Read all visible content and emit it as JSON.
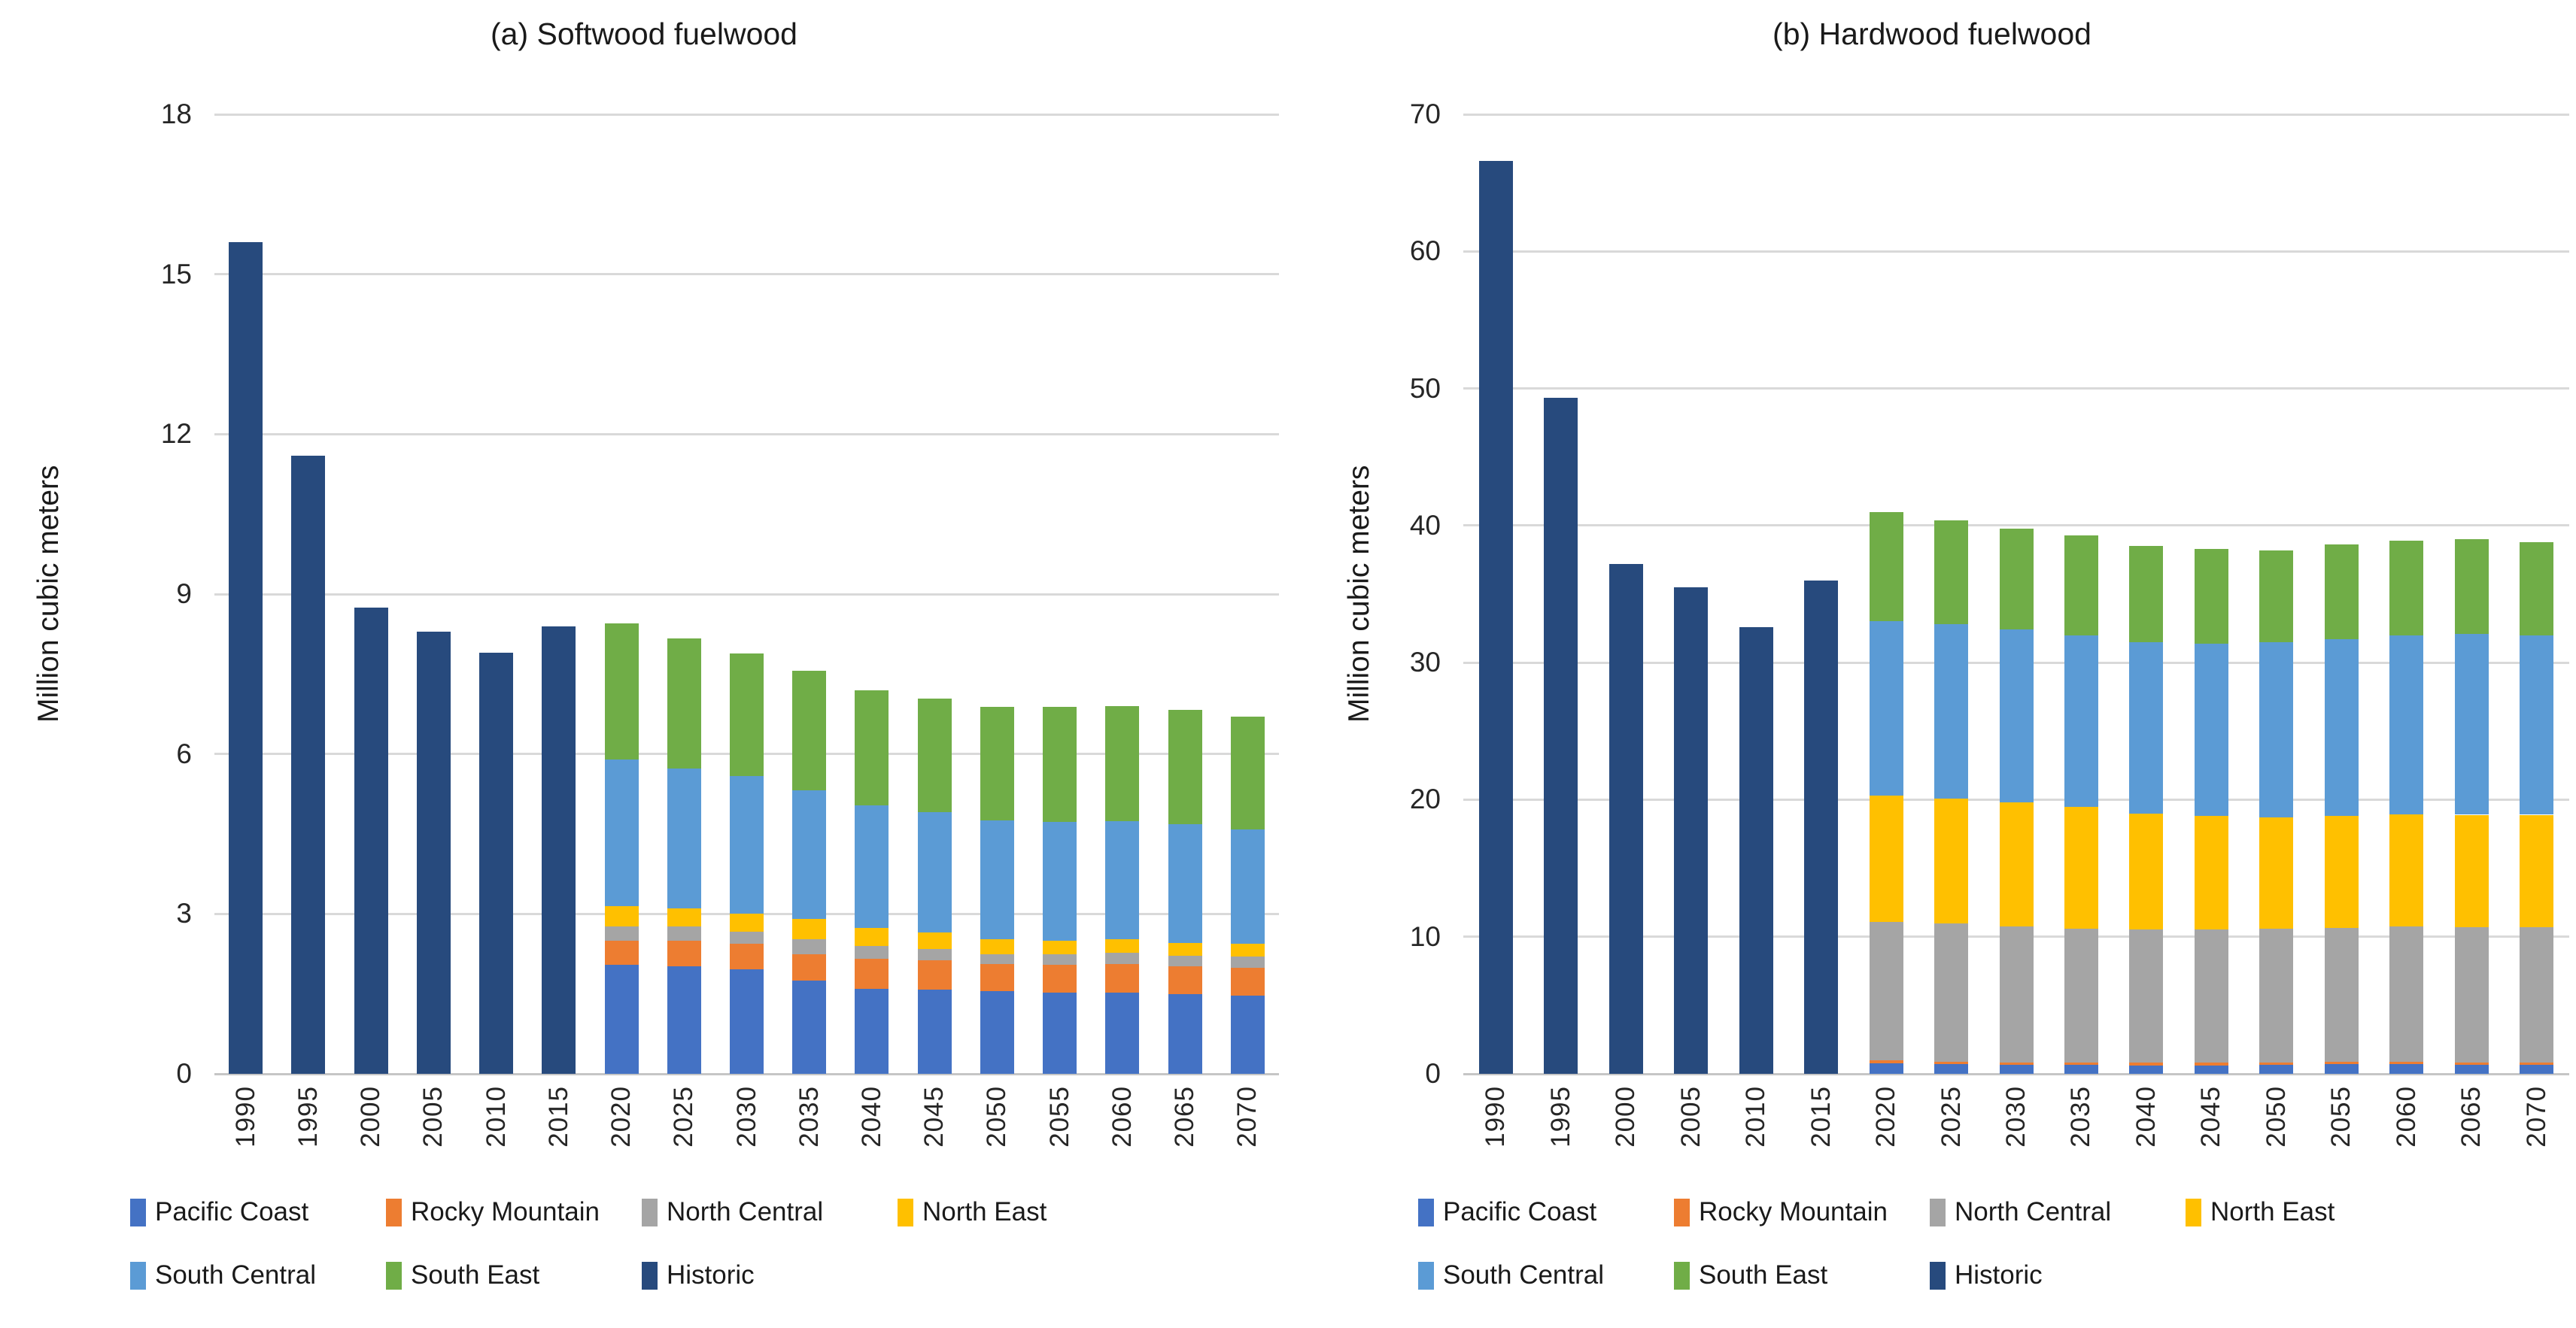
{
  "colors": {
    "Pacific Coast": "#4472C4",
    "Rocky Mountain": "#ED7D31",
    "North Central": "#A5A5A5",
    "North East": "#FFC000",
    "South Central": "#5B9BD5",
    "South East": "#70AD47",
    "Historic": "#274A7D",
    "gridline": "#D9D9D9",
    "axis_line": "#C6C6C6",
    "text": "#1A1A1A"
  },
  "chart_data": [
    {
      "type": "bar",
      "stacked": true,
      "title": "(a) Softwood fuelwood",
      "ylabel": "Million cubic meters",
      "xlabel": "",
      "ylim": [
        0,
        18
      ],
      "yticks": [
        0,
        3,
        6,
        9,
        12,
        15,
        18
      ],
      "grid": true,
      "legend_position": "bottom",
      "categories": [
        "1990",
        "1995",
        "2000",
        "2005",
        "2010",
        "2015",
        "2020",
        "2025",
        "2030",
        "2035",
        "2040",
        "2045",
        "2050",
        "2055",
        "2060",
        "2065",
        "2070"
      ],
      "series": [
        {
          "name": "Pacific Coast",
          "values": [
            null,
            null,
            null,
            null,
            null,
            null,
            2.05,
            2.02,
            1.96,
            1.75,
            1.6,
            1.58,
            1.55,
            1.52,
            1.53,
            1.5,
            1.47
          ]
        },
        {
          "name": "Rocky Mountain",
          "values": [
            null,
            null,
            null,
            null,
            null,
            null,
            0.45,
            0.48,
            0.48,
            0.5,
            0.56,
            0.55,
            0.51,
            0.53,
            0.53,
            0.52,
            0.52
          ]
        },
        {
          "name": "North Central",
          "values": [
            null,
            null,
            null,
            null,
            null,
            null,
            0.26,
            0.26,
            0.23,
            0.28,
            0.24,
            0.21,
            0.19,
            0.2,
            0.21,
            0.19,
            0.21
          ]
        },
        {
          "name": "North East",
          "values": [
            null,
            null,
            null,
            null,
            null,
            null,
            0.39,
            0.35,
            0.34,
            0.37,
            0.34,
            0.31,
            0.27,
            0.25,
            0.25,
            0.25,
            0.24
          ]
        },
        {
          "name": "South Central",
          "values": [
            null,
            null,
            null,
            null,
            null,
            null,
            2.75,
            2.62,
            2.58,
            2.42,
            2.29,
            2.26,
            2.24,
            2.23,
            2.22,
            2.23,
            2.15
          ]
        },
        {
          "name": "South East",
          "values": [
            null,
            null,
            null,
            null,
            null,
            null,
            2.55,
            2.44,
            2.3,
            2.24,
            2.16,
            2.13,
            2.13,
            2.15,
            2.16,
            2.14,
            2.11
          ]
        },
        {
          "name": "Historic",
          "values": [
            15.6,
            11.6,
            8.75,
            8.3,
            7.9,
            8.4,
            null,
            null,
            null,
            null,
            null,
            null,
            null,
            null,
            null,
            null,
            null
          ]
        }
      ],
      "legend_rows": [
        [
          "Pacific Coast",
          "Rocky Mountain",
          "North Central",
          "North East"
        ],
        [
          "South Central",
          "South East",
          "Historic"
        ]
      ]
    },
    {
      "type": "bar",
      "stacked": true,
      "title": "(b) Hardwood fuelwood",
      "ylabel": "Million cubic meters",
      "xlabel": "",
      "ylim": [
        0,
        70
      ],
      "yticks": [
        0,
        10,
        20,
        30,
        40,
        50,
        60,
        70
      ],
      "grid": true,
      "legend_position": "bottom",
      "categories": [
        "1990",
        "1995",
        "2000",
        "2005",
        "2010",
        "2015",
        "2020",
        "2025",
        "2030",
        "2035",
        "2040",
        "2045",
        "2050",
        "2055",
        "2060",
        "2065",
        "2070"
      ],
      "series": [
        {
          "name": "Pacific Coast",
          "values": [
            null,
            null,
            null,
            null,
            null,
            null,
            0.75,
            0.7,
            0.65,
            0.65,
            0.62,
            0.62,
            0.65,
            0.69,
            0.69,
            0.65,
            0.65
          ]
        },
        {
          "name": "Rocky Mountain",
          "values": [
            null,
            null,
            null,
            null,
            null,
            null,
            0.25,
            0.2,
            0.2,
            0.2,
            0.2,
            0.2,
            0.2,
            0.2,
            0.2,
            0.2,
            0.2
          ]
        },
        {
          "name": "North Central",
          "values": [
            null,
            null,
            null,
            null,
            null,
            null,
            10.1,
            10.1,
            9.9,
            9.75,
            9.7,
            9.7,
            9.75,
            9.76,
            9.86,
            9.85,
            9.85
          ]
        },
        {
          "name": "North East",
          "values": [
            null,
            null,
            null,
            null,
            null,
            null,
            9.2,
            9.1,
            9.05,
            8.9,
            8.48,
            8.28,
            8.1,
            8.15,
            8.15,
            8.2,
            8.2
          ]
        },
        {
          "name": "South Central",
          "values": [
            null,
            null,
            null,
            null,
            null,
            null,
            12.7,
            12.7,
            12.6,
            12.5,
            12.5,
            12.6,
            12.8,
            12.9,
            13.1,
            13.2,
            13.1
          ]
        },
        {
          "name": "South East",
          "values": [
            null,
            null,
            null,
            null,
            null,
            null,
            8.0,
            7.6,
            7.4,
            7.3,
            7.0,
            6.9,
            6.7,
            6.9,
            6.9,
            6.9,
            6.8
          ]
        },
        {
          "name": "Historic",
          "values": [
            66.6,
            49.3,
            37.2,
            35.5,
            32.6,
            36.0,
            null,
            null,
            null,
            null,
            null,
            null,
            null,
            null,
            null,
            null,
            null
          ]
        }
      ],
      "legend_rows": [
        [
          "Pacific Coast",
          "Rocky Mountain",
          "North Central",
          "North East"
        ],
        [
          "South Central",
          "South East",
          "Historic"
        ]
      ]
    }
  ]
}
